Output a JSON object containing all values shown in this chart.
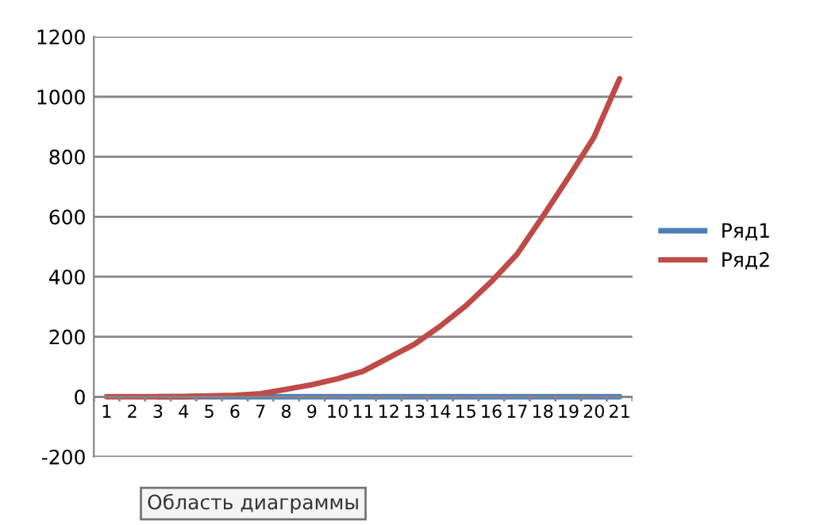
{
  "chart_data": {
    "type": "line",
    "categories": [
      "1",
      "2",
      "3",
      "4",
      "5",
      "6",
      "7",
      "8",
      "9",
      "10",
      "11",
      "12",
      "13",
      "14",
      "15",
      "16",
      "17",
      "18",
      "19",
      "20",
      "21"
    ],
    "series": [
      {
        "name": "Ряд1",
        "color": "#4a7ebb",
        "values": [
          null,
          null,
          0,
          0,
          0,
          0,
          0,
          0,
          0,
          0,
          0,
          0,
          0,
          0,
          0,
          0,
          0,
          0,
          0,
          0,
          0
        ]
      },
      {
        "name": "Ряд2",
        "color": "#be4b48",
        "values": [
          0,
          0,
          0,
          1,
          3,
          5,
          10,
          25,
          40,
          60,
          85,
          130,
          175,
          235,
          303,
          384,
          475,
          600,
          730,
          865,
          1060
        ]
      }
    ],
    "ylim": [
      -200,
      1200
    ],
    "yticks": [
      -200,
      0,
      200,
      400,
      600,
      800,
      1000,
      1200
    ],
    "grid": "y",
    "legend": "right",
    "marker": "none",
    "line_style": "solid",
    "annotations": [
      "Область диаграммы"
    ]
  }
}
